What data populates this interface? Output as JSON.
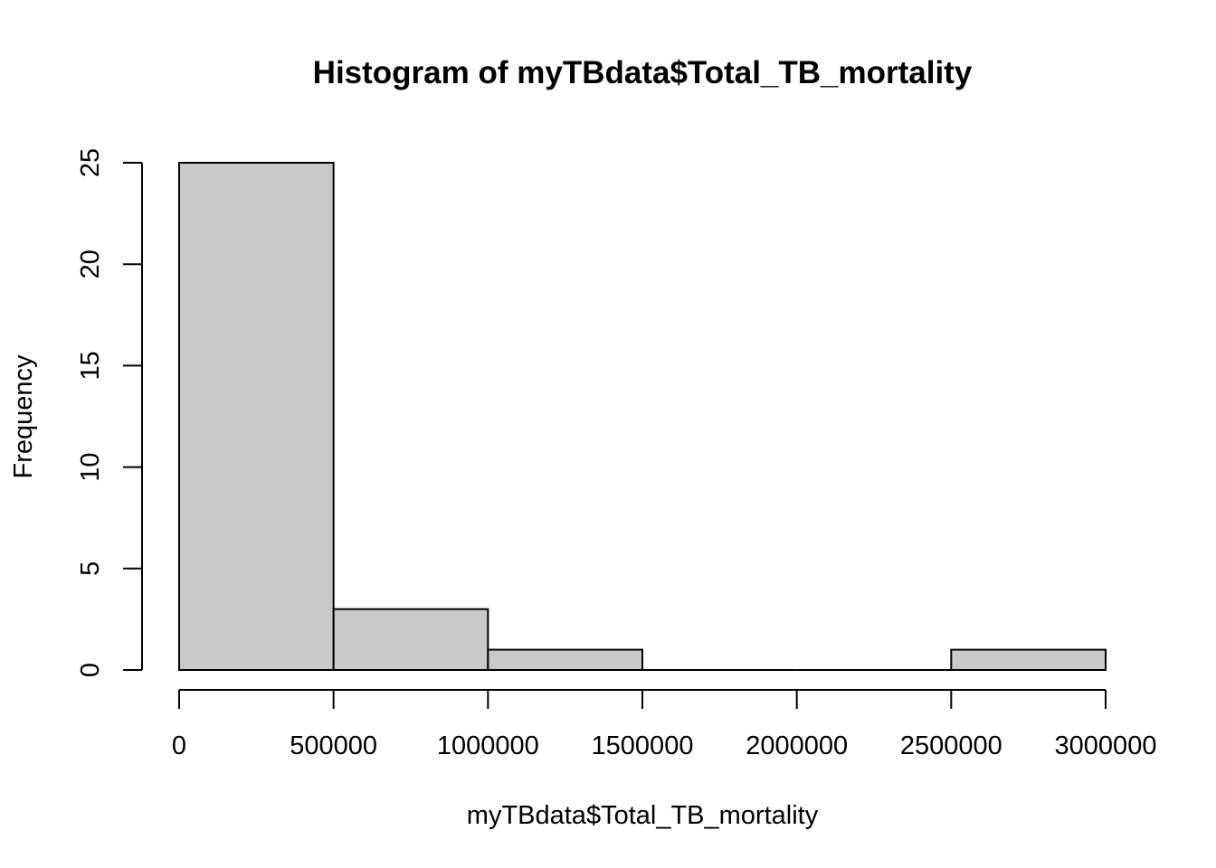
{
  "chart_data": {
    "type": "bar",
    "title": "Histogram of myTBdata$Total_TB_mortality",
    "xlabel": "myTBdata$Total_TB_mortality",
    "ylabel": "Frequency",
    "bins": [
      {
        "start": 0,
        "end": 500000,
        "count": 25
      },
      {
        "start": 500000,
        "end": 1000000,
        "count": 3
      },
      {
        "start": 1000000,
        "end": 1500000,
        "count": 1
      },
      {
        "start": 1500000,
        "end": 2000000,
        "count": 0
      },
      {
        "start": 2000000,
        "end": 2500000,
        "count": 0
      },
      {
        "start": 2500000,
        "end": 3000000,
        "count": 1
      }
    ],
    "x_ticks": [
      0,
      500000,
      1000000,
      1500000,
      2000000,
      2500000,
      3000000
    ],
    "x_tick_labels": [
      "0",
      "500000",
      "1000000",
      "1500000",
      "2000000",
      "2500000",
      "3000000"
    ],
    "y_ticks": [
      0,
      5,
      10,
      15,
      20,
      25
    ],
    "y_tick_labels": [
      "0",
      "5",
      "10",
      "15",
      "20",
      "25"
    ],
    "xlim": [
      0,
      3000000
    ],
    "ylim": [
      0,
      25
    ],
    "bar_fill": "#c9c9c9",
    "bar_stroke": "#000000",
    "grid": false,
    "legend": "none"
  }
}
